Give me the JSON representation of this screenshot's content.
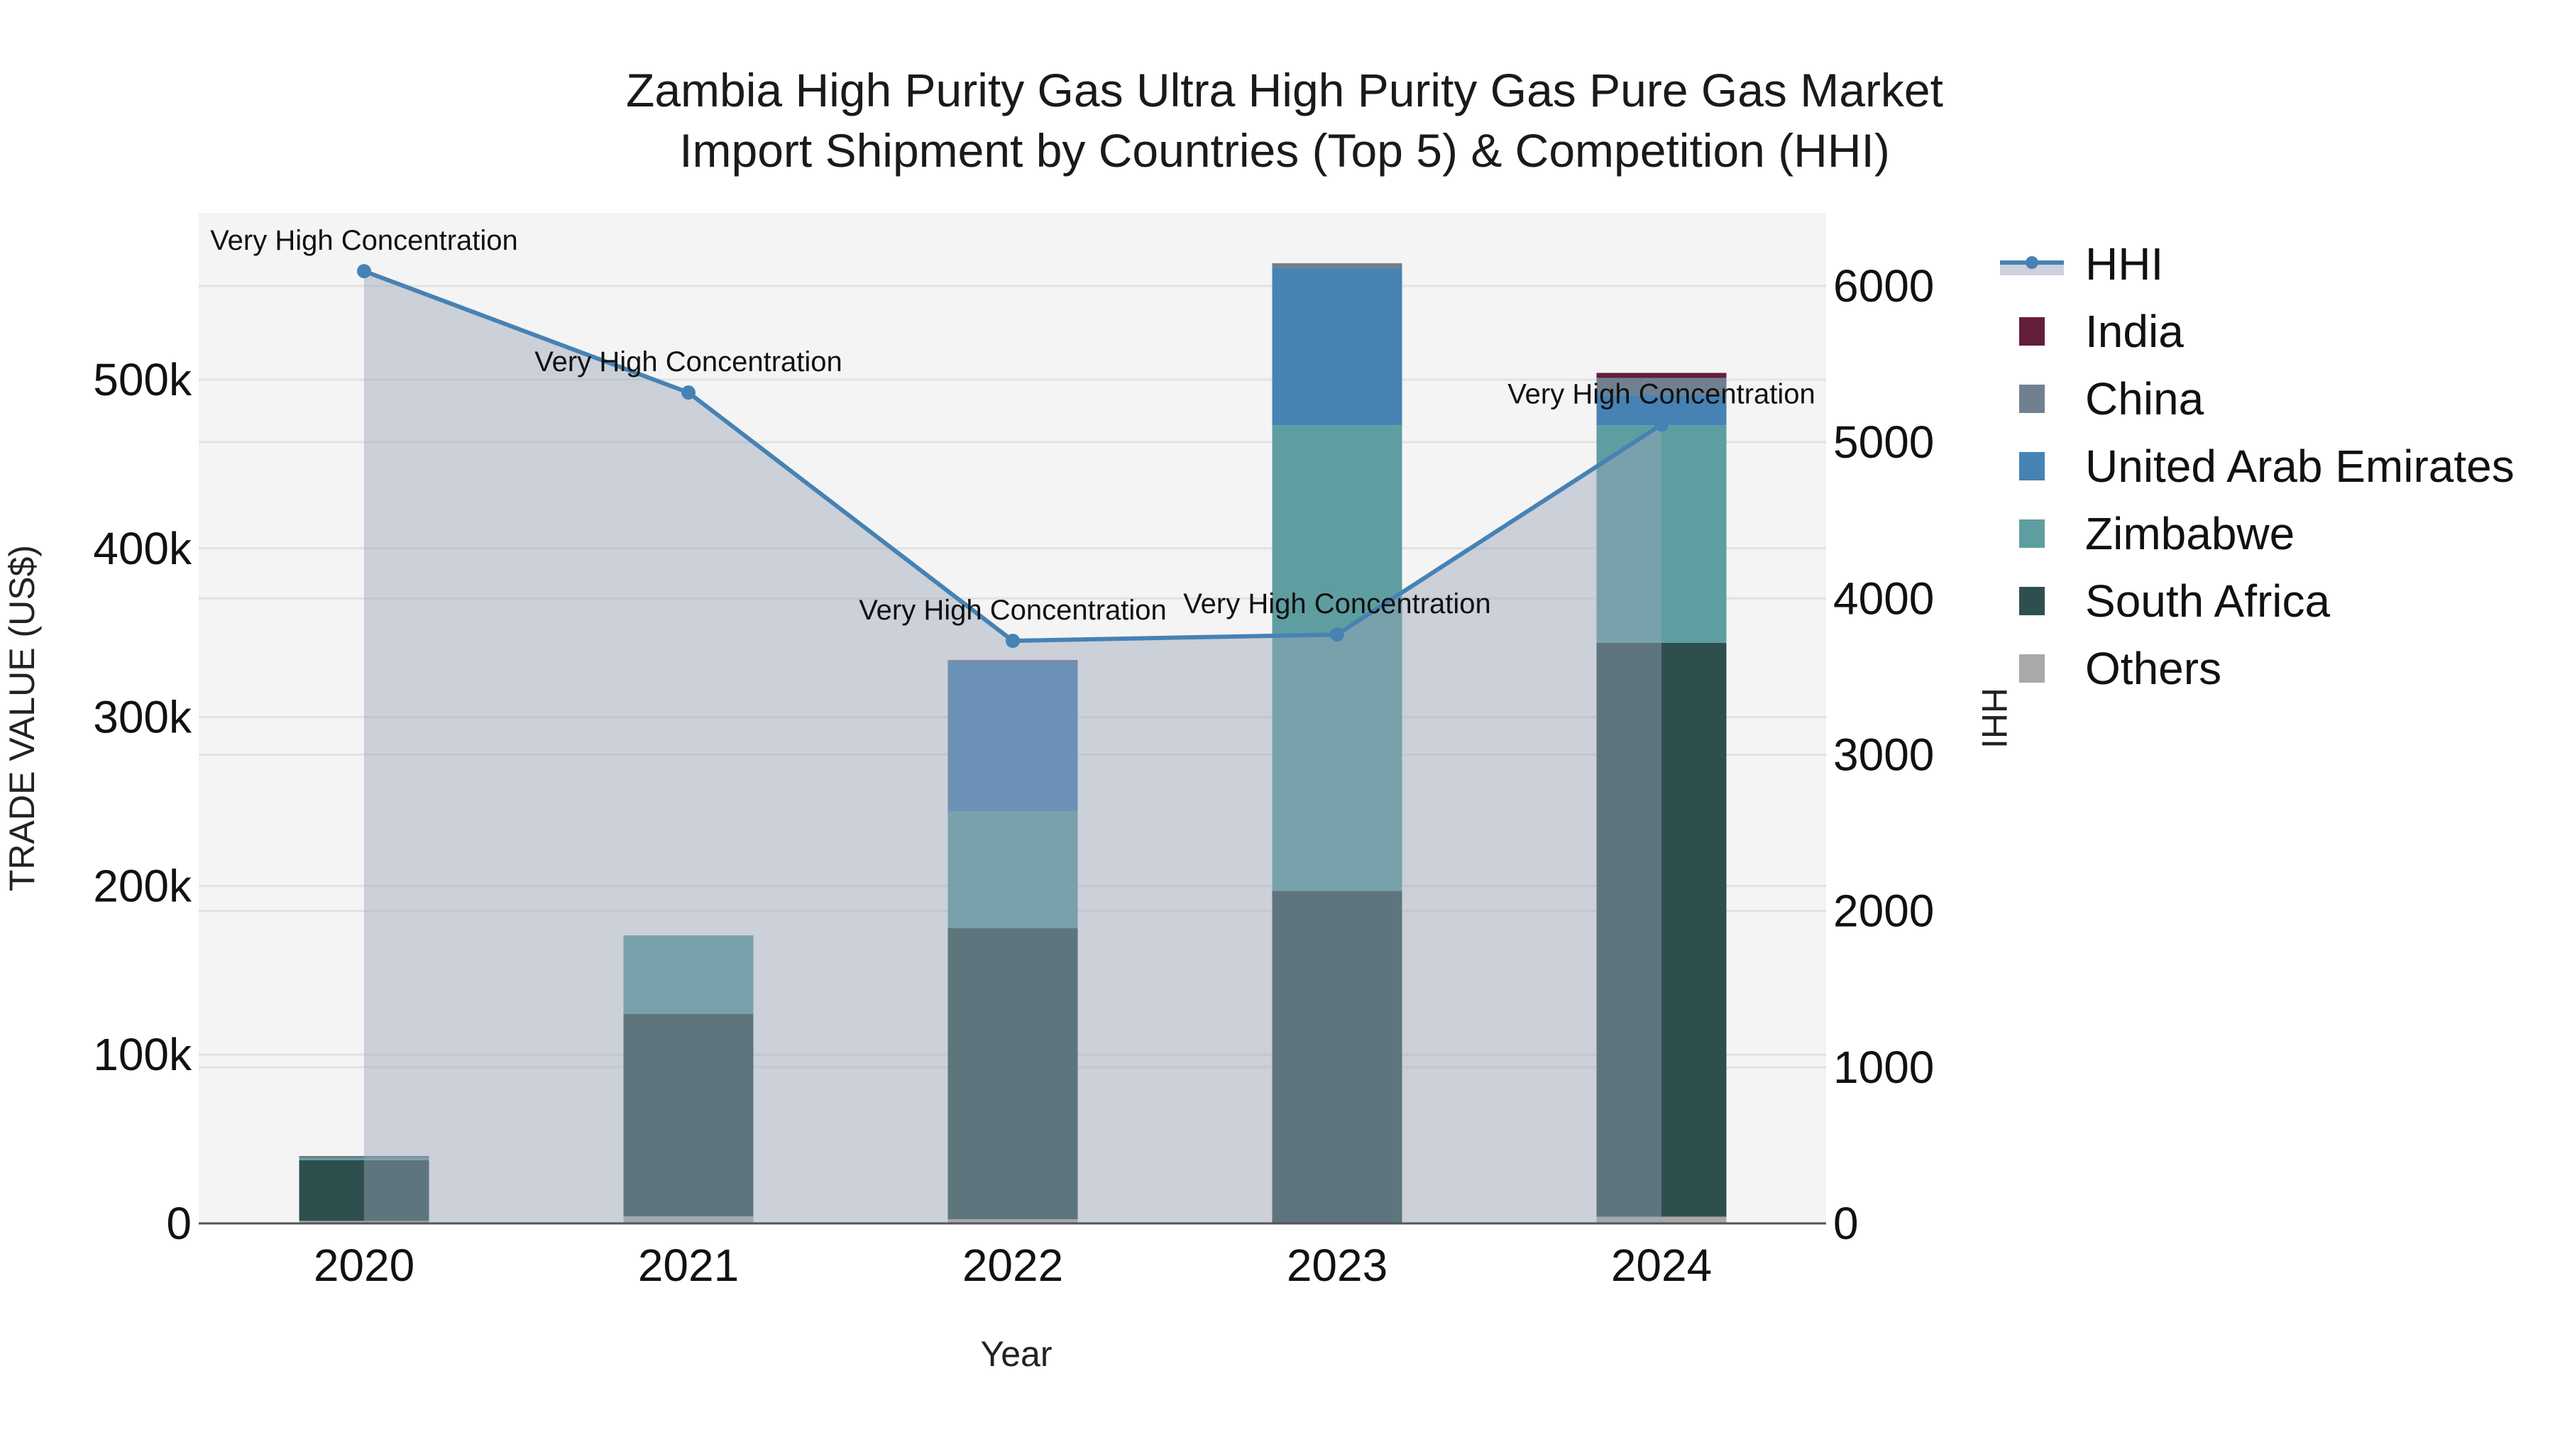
{
  "chart_data": {
    "type": "bar",
    "stacked": true,
    "title": "Zambia High Purity Gas Ultra High Purity Gas Pure Gas Market",
    "subtitle": "Import Shipment by Countries (Top 5) & Competition (HHI)",
    "xlabel": "Year",
    "ylabel": "TRADE VALUE (US$)",
    "y2label": "HHI",
    "categories": [
      "2020",
      "2021",
      "2022",
      "2023",
      "2024"
    ],
    "ylim": [
      0,
      565000
    ],
    "y2lim": [
      0,
      6500
    ],
    "yticks": [
      0,
      100000,
      200000,
      300000,
      400000,
      500000
    ],
    "ytick_labels": [
      "0",
      "100k",
      "200k",
      "300k",
      "400k",
      "500k"
    ],
    "y2ticks": [
      0,
      1000,
      2000,
      3000,
      4000,
      5000,
      6000
    ],
    "y2tick_labels": [
      "0",
      "1000",
      "2000",
      "3000",
      "4000",
      "5000",
      "6000"
    ],
    "grid": true,
    "legend_position": "right",
    "series": [
      {
        "name": "Others",
        "color": "#a9a9a9",
        "values": [
          1500,
          4200,
          2500,
          500,
          4000
        ]
      },
      {
        "name": "South Africa",
        "color": "#2f4f4f",
        "values": [
          36000,
          120000,
          172500,
          196500,
          340000
        ]
      },
      {
        "name": "Zimbabwe",
        "color": "#5f9ea0",
        "values": [
          2000,
          46500,
          69000,
          276000,
          129000
        ]
      },
      {
        "name": "United Arab Emirates",
        "color": "#4682b4",
        "values": [
          0,
          0,
          89000,
          93000,
          18000
        ]
      },
      {
        "name": "China",
        "color": "#708090",
        "values": [
          0,
          0,
          300,
          3000,
          10000
        ]
      },
      {
        "name": "India",
        "color": "#641e3c",
        "values": [
          300,
          0,
          400,
          0,
          3000
        ]
      }
    ],
    "line_series": {
      "name": "HHI",
      "axis": "y2",
      "color": "#4682b4",
      "fill_color": "#9aa5b8",
      "values": [
        6095,
        5318,
        3729,
        3769,
        5113
      ],
      "annotations": [
        "Very High Concentration",
        "Very High Concentration",
        "Very High Concentration",
        "Very High Concentration",
        "Very High Concentration"
      ]
    },
    "legend": [
      "HHI",
      "India",
      "China",
      "United Arab Emirates",
      "Zimbabwe",
      "South Africa",
      "Others"
    ]
  },
  "layout": {
    "plot_bg": "#f4f4f4",
    "grid_color": "#e2e2e2",
    "axis_color": "#555555"
  }
}
